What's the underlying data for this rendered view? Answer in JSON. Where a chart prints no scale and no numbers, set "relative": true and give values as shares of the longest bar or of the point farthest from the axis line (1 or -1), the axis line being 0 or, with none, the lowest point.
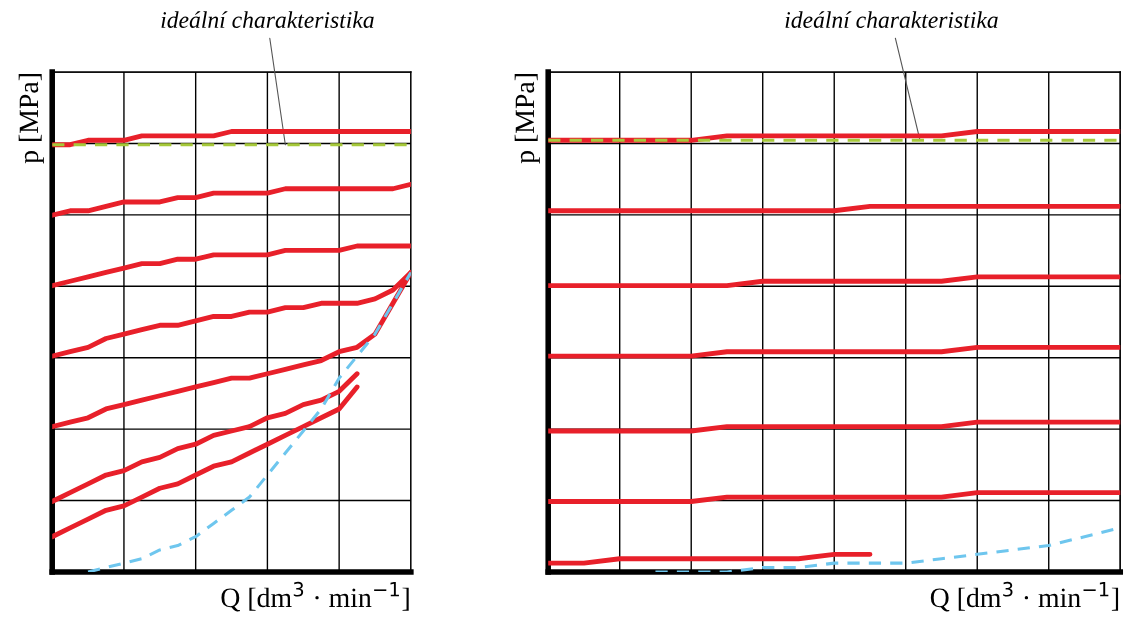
{
  "chart_data": [
    {
      "type": "line",
      "relative": true,
      "xlabel": "Q [dm$^{3}$ · min$^{−1}$]",
      "ylabel": "p [MPa]",
      "annotations": [
        "ideální charakteristika"
      ],
      "grid": true,
      "categories": [
        null,
        null,
        null,
        null,
        null,
        null,
        null,
        null,
        null,
        null,
        null,
        null,
        null,
        null,
        null,
        null,
        null,
        null,
        null,
        null,
        null
      ],
      "series": [
        {
          "color": "#a6c93a",
          "line_style": "dashed",
          "values": [
            0.97,
            0.97,
            0.97,
            0.97,
            0.97,
            0.97,
            0.97,
            0.97,
            0.97,
            0.97,
            0.97,
            0.97,
            0.97,
            0.97,
            0.97,
            0.97,
            0.97,
            0.97,
            0.97,
            0.97,
            0.97
          ]
        },
        {
          "color": "#e8202a",
          "values": [
            0.97,
            0.97,
            0.98,
            0.98,
            0.98,
            0.99,
            0.99,
            0.99,
            0.99,
            0.99,
            1.0,
            1.0,
            1.0,
            1.0,
            1.0,
            1.0,
            1.0,
            1.0,
            1.0,
            1.0,
            1.0
          ]
        },
        {
          "color": "#e8202a",
          "values": [
            0.81,
            0.82,
            0.82,
            0.83,
            0.84,
            0.84,
            0.84,
            0.85,
            0.85,
            0.86,
            0.86,
            0.86,
            0.86,
            0.87,
            0.87,
            0.87,
            0.87,
            0.87,
            0.87,
            0.87,
            0.88
          ]
        },
        {
          "color": "#e8202a",
          "values": [
            0.65,
            0.66,
            0.67,
            0.68,
            0.69,
            0.7,
            0.7,
            0.71,
            0.71,
            0.72,
            0.72,
            0.72,
            0.72,
            0.73,
            0.73,
            0.73,
            0.73,
            0.74,
            0.74,
            0.74,
            0.74
          ]
        },
        {
          "color": "#e8202a",
          "values": [
            0.49,
            0.5,
            0.51,
            0.53,
            0.54,
            0.55,
            0.56,
            0.56,
            0.57,
            0.58,
            0.58,
            0.59,
            0.59,
            0.6,
            0.6,
            0.61,
            0.61,
            0.61,
            0.62,
            0.64,
            0.68
          ]
        },
        {
          "color": "#e8202a",
          "values": [
            0.33,
            0.34,
            0.35,
            0.37,
            0.38,
            0.39,
            0.4,
            0.41,
            0.42,
            0.43,
            0.44,
            0.44,
            0.45,
            0.46,
            0.47,
            0.48,
            0.5,
            0.51,
            0.54,
            0.61,
            0.68
          ]
        },
        {
          "color": "#e8202a",
          "values": [
            0.16,
            0.18,
            0.2,
            0.22,
            0.23,
            0.25,
            0.26,
            0.28,
            0.29,
            0.31,
            0.32,
            0.33,
            0.35,
            0.36,
            0.38,
            0.39,
            0.41,
            0.45,
            null,
            null,
            null
          ]
        },
        {
          "color": "#e8202a",
          "values": [
            0.08,
            0.1,
            0.12,
            0.14,
            0.15,
            0.17,
            0.19,
            0.2,
            0.22,
            0.24,
            0.25,
            0.27,
            0.29,
            0.31,
            0.33,
            0.35,
            0.37,
            0.42,
            null,
            null,
            null
          ]
        },
        {
          "color": "#6ec6ee",
          "line_style": "dashed",
          "values": [
            null,
            null,
            0,
            0.01,
            0.02,
            0.03,
            0.05,
            0.06,
            0.08,
            0.11,
            0.14,
            0.17,
            0.22,
            0.27,
            0.32,
            0.37,
            0.44,
            0.49,
            0.54,
            0.61,
            0.68
          ]
        }
      ]
    },
    {
      "type": "line",
      "relative": true,
      "xlabel": "Q [dm$^{3}$ · min$^{−1}$]",
      "ylabel": "p [MPa]",
      "annotations": [
        "ideální charakteristika"
      ],
      "grid": true,
      "categories": [
        null,
        null,
        null,
        null,
        null,
        null,
        null,
        null,
        null,
        null,
        null,
        null,
        null,
        null,
        null,
        null,
        null
      ],
      "series": [
        {
          "color": "#a6c93a",
          "line_style": "dashed",
          "values": [
            0.98,
            0.98,
            0.98,
            0.98,
            0.98,
            0.98,
            0.98,
            0.98,
            0.98,
            0.98,
            0.98,
            0.98,
            0.98,
            0.98,
            0.98,
            0.98,
            0.98
          ]
        },
        {
          "color": "#e8202a",
          "values": [
            0.98,
            0.98,
            0.98,
            0.98,
            0.98,
            0.99,
            0.99,
            0.99,
            0.99,
            0.99,
            0.99,
            0.99,
            1.0,
            1.0,
            1.0,
            1.0,
            1.0
          ]
        },
        {
          "color": "#e8202a",
          "values": [
            0.82,
            0.82,
            0.82,
            0.82,
            0.82,
            0.82,
            0.82,
            0.82,
            0.82,
            0.83,
            0.83,
            0.83,
            0.83,
            0.83,
            0.83,
            0.83,
            0.83
          ]
        },
        {
          "color": "#e8202a",
          "values": [
            0.65,
            0.65,
            0.65,
            0.65,
            0.65,
            0.65,
            0.66,
            0.66,
            0.66,
            0.66,
            0.66,
            0.66,
            0.67,
            0.67,
            0.67,
            0.67,
            0.67
          ]
        },
        {
          "color": "#e8202a",
          "values": [
            0.49,
            0.49,
            0.49,
            0.49,
            0.49,
            0.5,
            0.5,
            0.5,
            0.5,
            0.5,
            0.5,
            0.5,
            0.51,
            0.51,
            0.51,
            0.51,
            0.51
          ]
        },
        {
          "color": "#e8202a",
          "values": [
            0.32,
            0.32,
            0.32,
            0.32,
            0.32,
            0.33,
            0.33,
            0.33,
            0.33,
            0.33,
            0.33,
            0.33,
            0.34,
            0.34,
            0.34,
            0.34,
            0.34
          ]
        },
        {
          "color": "#e8202a",
          "values": [
            0.16,
            0.16,
            0.16,
            0.16,
            0.16,
            0.17,
            0.17,
            0.17,
            0.17,
            0.17,
            0.17,
            0.17,
            0.18,
            0.18,
            0.18,
            0.18,
            0.18
          ]
        },
        {
          "color": "#e8202a",
          "values": [
            0.02,
            0.02,
            0.03,
            0.03,
            0.03,
            0.03,
            0.03,
            0.03,
            0.04,
            0.04,
            null,
            null,
            null,
            null,
            null,
            null,
            null
          ]
        },
        {
          "color": "#6ec6ee",
          "line_style": "dashed",
          "values": [
            null,
            null,
            null,
            0,
            0,
            0,
            0.01,
            0.01,
            0.02,
            0.02,
            0.02,
            0.03,
            0.04,
            0.05,
            0.06,
            0.08,
            0.1
          ]
        }
      ]
    }
  ]
}
